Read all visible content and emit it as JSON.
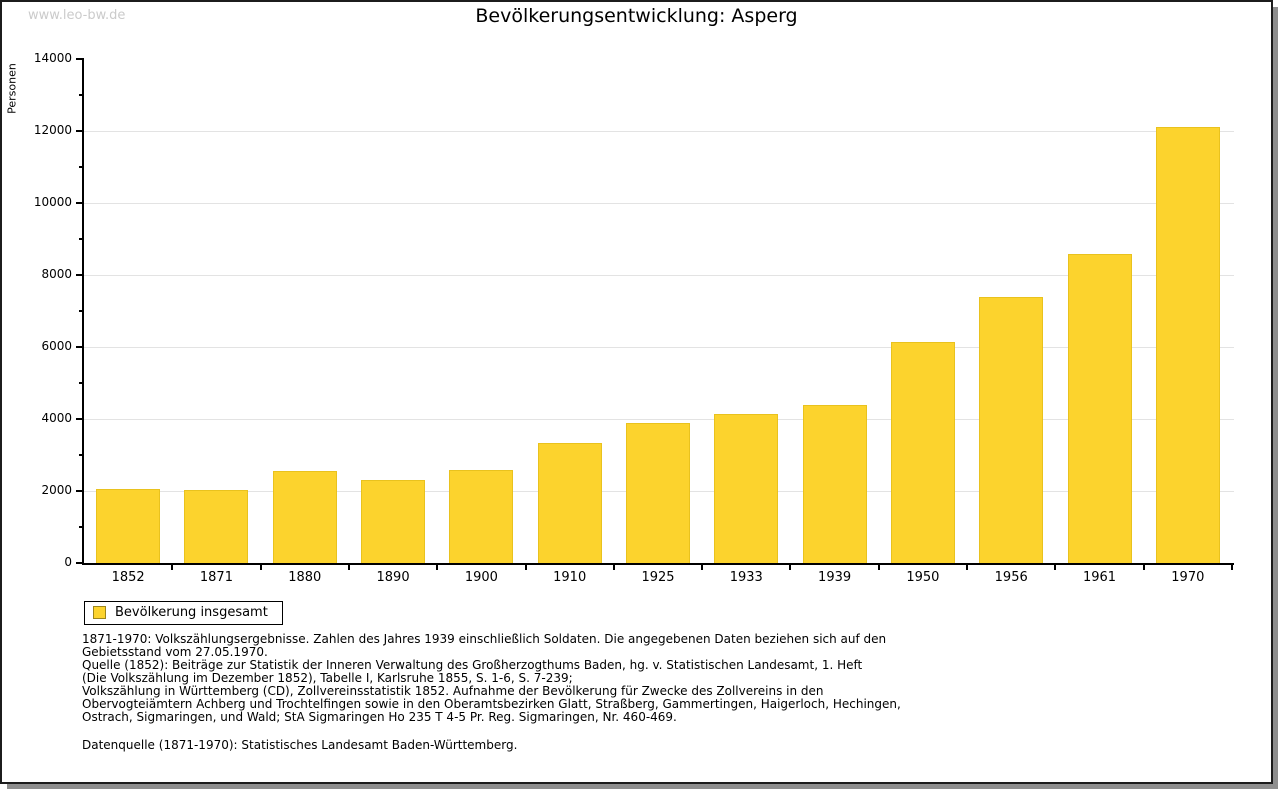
{
  "page": {
    "watermark": "www.leo-bw.de"
  },
  "chart_data": {
    "type": "bar",
    "title": "Bevölkerungsentwicklung: Asperg",
    "xlabel": "",
    "ylabel": "Personen",
    "categories": [
      "1852",
      "1871",
      "1880",
      "1890",
      "1900",
      "1910",
      "1925",
      "1933",
      "1939",
      "1950",
      "1956",
      "1961",
      "1970"
    ],
    "values": [
      2060,
      2020,
      2550,
      2310,
      2590,
      3320,
      3880,
      4130,
      4390,
      6150,
      7380,
      8590,
      12110
    ],
    "ylim": [
      0,
      14000
    ],
    "yticks": [
      0,
      2000,
      4000,
      6000,
      8000,
      10000,
      12000,
      14000
    ],
    "ytick_step": 2000,
    "minor_tick_step": 1000,
    "grid": true,
    "legend_position": "bottom-left",
    "legend": [
      {
        "label": "Bevölkerung insgesamt",
        "color": "#FCD32D"
      }
    ],
    "bar_color": "#FCD32D",
    "bar_border_color": "#E9C21E",
    "gridline_color": "#e3e3e3",
    "axis_color": "#000000"
  },
  "footnotes": {
    "lines": [
      "1871-1970: Volkszählungsergebnisse. Zahlen des Jahres 1939 einschließlich Soldaten. Die angegebenen Daten beziehen sich auf den",
      "Gebietsstand vom 27.05.1970.",
      "Quelle (1852): Beiträge zur Statistik der Inneren Verwaltung des Großherzogthums Baden, hg. v. Statistischen Landesamt, 1. Heft",
      "(Die Volkszählung im Dezember 1852), Tabelle I, Karlsruhe 1855, S. 1-6, S. 7-239;",
      "Volkszählung in Württemberg (CD), Zollvereinsstatistik 1852. Aufnahme der Bevölkerung für Zwecke des Zollvereins in den",
      "Obervogteiämtern Achberg und Trochtelfingen sowie in den Oberamtsbezirken Glatt, Straßberg, Gammertingen, Haigerloch, Hechingen,",
      "Ostrach, Sigmaringen, und Wald; StA Sigmaringen Ho 235 T 4-5 Pr. Reg. Sigmaringen, Nr. 460-469."
    ],
    "datasource": "Datenquelle (1871-1970): Statistisches Landesamt Baden-Württemberg."
  }
}
